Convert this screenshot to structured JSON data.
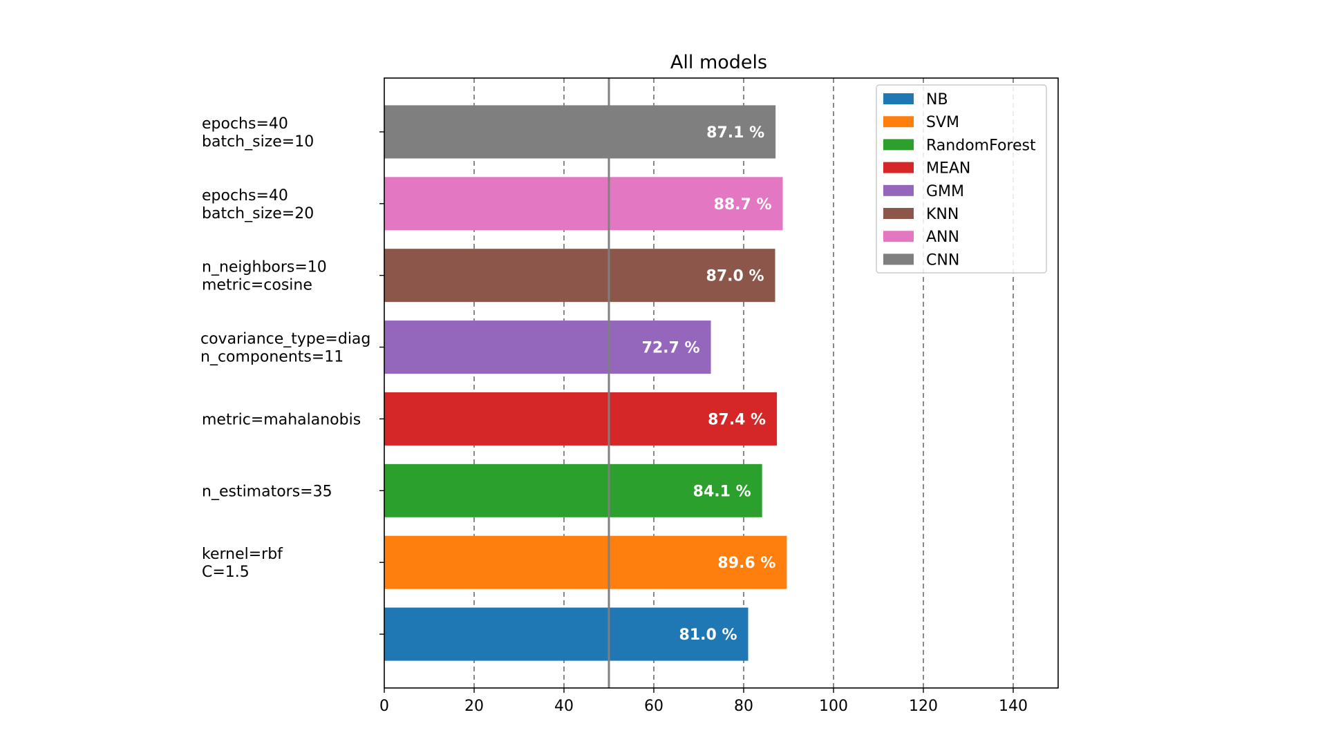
{
  "chart_data": {
    "type": "bar",
    "orientation": "horizontal",
    "title": "All models",
    "xlabel": "",
    "ylabel": "",
    "xlim": [
      0,
      150
    ],
    "xticks": [
      0,
      20,
      40,
      60,
      80,
      100,
      120,
      140
    ],
    "grid": "vertical dashed",
    "reference_line": 50,
    "legend_position": "top-right",
    "categories": [
      "",
      "kernel=rbf\nC=1.5",
      "n_estimators=35",
      "metric=mahalanobis",
      "covariance_type=diag\nn_components=11",
      "n_neighbors=10\nmetric=cosine",
      "epochs=40\nbatch_size=20",
      "epochs=40\nbatch_size=10"
    ],
    "series": [
      {
        "name": "NB",
        "value": 81.0,
        "label": "81.0 %",
        "category": "",
        "color": "#1f77b4"
      },
      {
        "name": "SVM",
        "value": 89.6,
        "label": "89.6 %",
        "category": "kernel=rbf\nC=1.5",
        "color": "#ff7f0e"
      },
      {
        "name": "RandomForest",
        "value": 84.1,
        "label": "84.1 %",
        "category": "n_estimators=35",
        "color": "#2ca02c"
      },
      {
        "name": "MEAN",
        "value": 87.4,
        "label": "87.4 %",
        "category": "metric=mahalanobis",
        "color": "#d62728"
      },
      {
        "name": "GMM",
        "value": 72.7,
        "label": "72.7 %",
        "category": "covariance_type=diag\nn_components=11",
        "color": "#9467bd"
      },
      {
        "name": "KNN",
        "value": 87.0,
        "label": "87.0 %",
        "category": "n_neighbors=10\nmetric=cosine",
        "color": "#8c564b"
      },
      {
        "name": "ANN",
        "value": 88.7,
        "label": "88.7 %",
        "category": "epochs=40\nbatch_size=20",
        "color": "#e377c2"
      },
      {
        "name": "CNN",
        "value": 87.1,
        "label": "87.1 %",
        "category": "epochs=40\nbatch_size=10",
        "color": "#7f7f7f"
      }
    ],
    "legend": [
      "NB",
      "SVM",
      "RandomForest",
      "MEAN",
      "GMM",
      "KNN",
      "ANN",
      "CNN"
    ]
  }
}
